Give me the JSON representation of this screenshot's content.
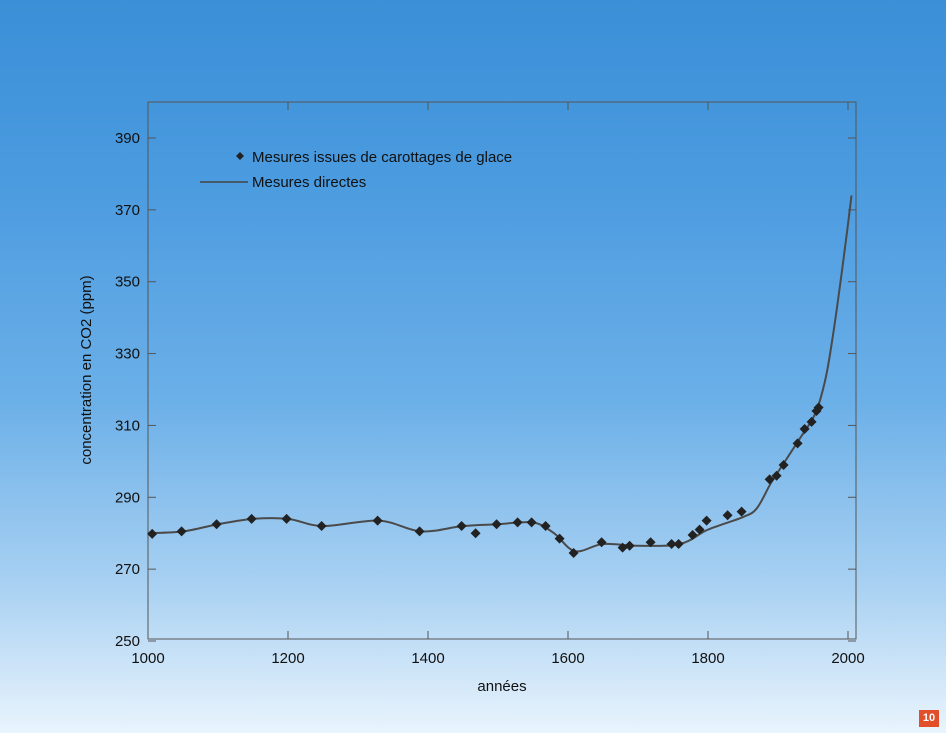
{
  "page_number": "10",
  "chart_data": {
    "type": "scatter",
    "xlabel": "années",
    "ylabel": "concentration en CO2 (ppm)",
    "xlim": [
      1000,
      2005
    ],
    "ylim": [
      250,
      400
    ],
    "x_ticks": [
      1000,
      1200,
      1400,
      1600,
      1800,
      2000
    ],
    "y_ticks": [
      250,
      270,
      290,
      310,
      330,
      350,
      370,
      390
    ],
    "grid": false,
    "legend_position": "top-left",
    "series": [
      {
        "name": "Mesures issues de carottages de glace",
        "marker": "diamond",
        "x": [
          1006,
          1048,
          1098,
          1148,
          1198,
          1248,
          1328,
          1388,
          1448,
          1468,
          1498,
          1528,
          1548,
          1568,
          1588,
          1608,
          1648,
          1678,
          1688,
          1718,
          1748,
          1758,
          1778,
          1788,
          1798,
          1828,
          1848,
          1888,
          1898,
          1908,
          1928,
          1938,
          1948,
          1955,
          1958
        ],
        "y": [
          279.8,
          280.5,
          282.5,
          284,
          284,
          282,
          283.5,
          280.5,
          282,
          280,
          282.5,
          283,
          283,
          282,
          278.5,
          274.5,
          277.5,
          276,
          276.5,
          277.5,
          277,
          277,
          279.5,
          281,
          283.5,
          285,
          286,
          295,
          296,
          299,
          305,
          309,
          311,
          314,
          315
        ]
      },
      {
        "name": "Mesures directes",
        "marker": "line",
        "x": [
          1000,
          1050,
          1100,
          1150,
          1200,
          1250,
          1330,
          1390,
          1450,
          1500,
          1550,
          1580,
          1610,
          1650,
          1700,
          1760,
          1800,
          1850,
          1870,
          1890,
          1910,
          1930,
          1950,
          1960,
          1970,
          1980,
          1990,
          2000,
          2005
        ],
        "y": [
          280,
          280.5,
          282.5,
          284,
          284,
          282,
          283.5,
          280.5,
          282,
          282.5,
          283,
          280,
          275,
          277,
          276.5,
          277,
          281,
          284.5,
          287,
          294,
          300,
          306,
          312,
          317,
          325,
          337,
          351,
          366,
          374
        ]
      }
    ]
  }
}
